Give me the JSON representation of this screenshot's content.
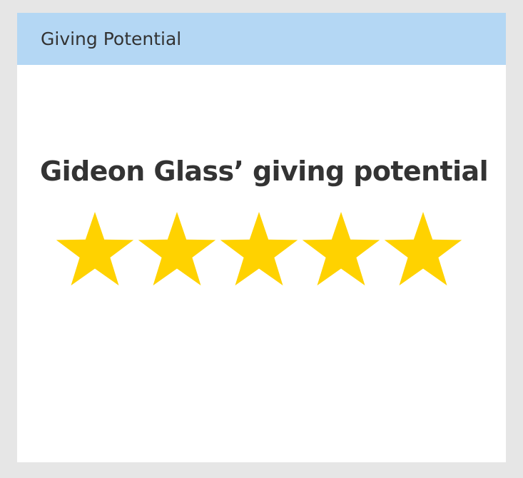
{
  "panel": {
    "title": "Giving Potential"
  },
  "rating": {
    "headline": "Gideon Glass’ giving potential",
    "value": 5,
    "max": 5,
    "star_color": "#ffd200",
    "icon": "star-icon"
  },
  "colors": {
    "header_background": "#b4d7f4",
    "page_background": "#e6e6e6",
    "card_background": "#ffffff",
    "text": "#333333"
  }
}
